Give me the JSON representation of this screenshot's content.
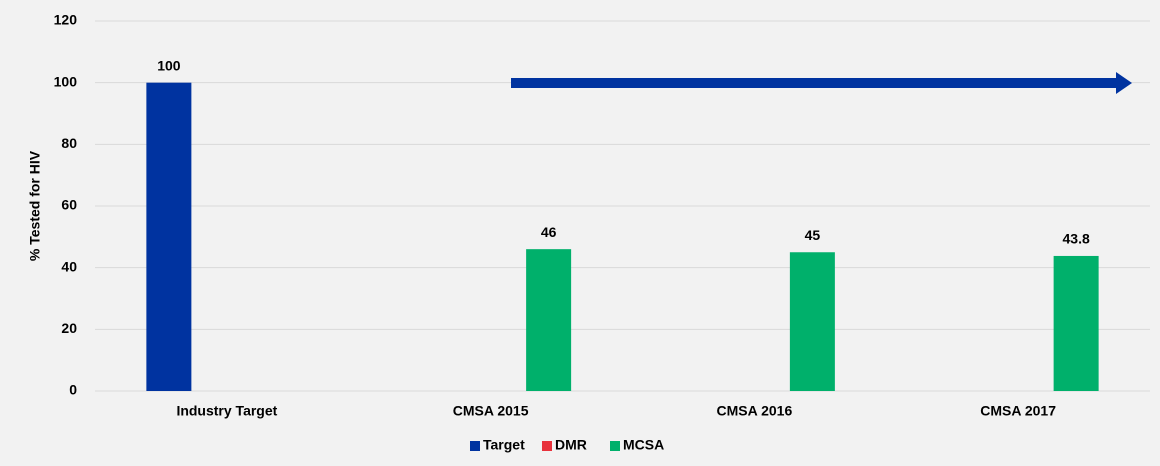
{
  "chart_data": {
    "type": "bar",
    "categories": [
      "Industry Target",
      "CMSA 2015",
      "CMSA 2016",
      "CMSA 2017"
    ],
    "series": [
      {
        "name": "Target",
        "color": "#0033a0",
        "values": [
          100,
          null,
          null,
          null
        ]
      },
      {
        "name": "DMR",
        "color": "#e8323c",
        "values": [
          null,
          null,
          null,
          null
        ]
      },
      {
        "name": "MCSA",
        "color": "#00b06b",
        "values": [
          null,
          46,
          45,
          43.8
        ]
      }
    ],
    "y_label": "% Tested for HIV",
    "ylim": [
      0,
      120
    ],
    "yticks": [
      0,
      20,
      40,
      60,
      80,
      100,
      120
    ],
    "grid": true,
    "legend": "bottom"
  }
}
